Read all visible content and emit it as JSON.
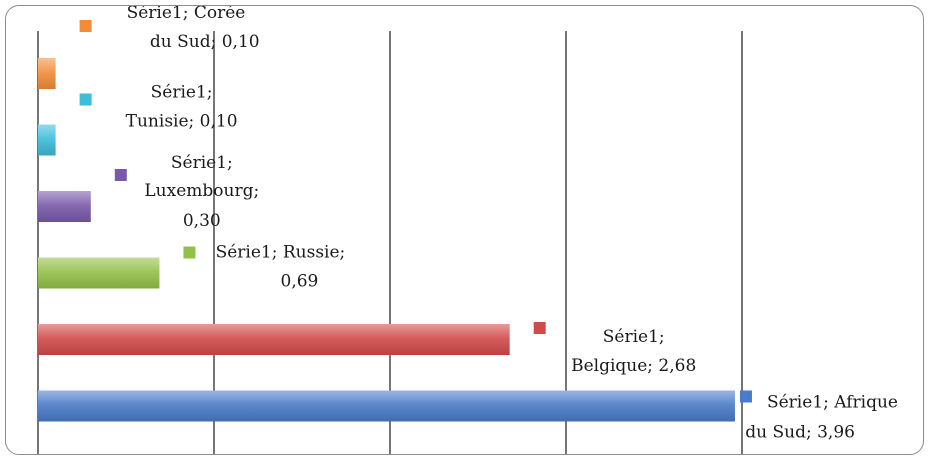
{
  "chart_data": {
    "type": "bar",
    "orientation": "horizontal",
    "xlim": [
      0,
      4
    ],
    "grid": true,
    "legend": "none",
    "series": [
      {
        "name": "Série1",
        "categories": [
          "Afrique du Sud",
          "Belgique",
          "Russie",
          "Luxembourg",
          "Tunisie",
          "Corée du Sud"
        ],
        "values": [
          3.96,
          2.68,
          0.69,
          0.3,
          0.1,
          0.1
        ]
      }
    ],
    "data_labels": [
      [
        "Série1; Afrique",
        "du Sud; 3,96"
      ],
      [
        "Série1;",
        "Belgique; 2,68"
      ],
      [
        "Série1; Russie;",
        "0,69"
      ],
      [
        "Série1;",
        "Luxembourg;",
        "0,30"
      ],
      [
        "Série1;",
        "Tunisie; 0,10"
      ],
      [
        "Série1; Corée",
        "du Sud; 0,10"
      ]
    ],
    "colors": [
      "#4a7bc8",
      "#d24b4a",
      "#93c04a",
      "#7a5aa8",
      "#3ebcd8",
      "#f28c3a"
    ]
  }
}
